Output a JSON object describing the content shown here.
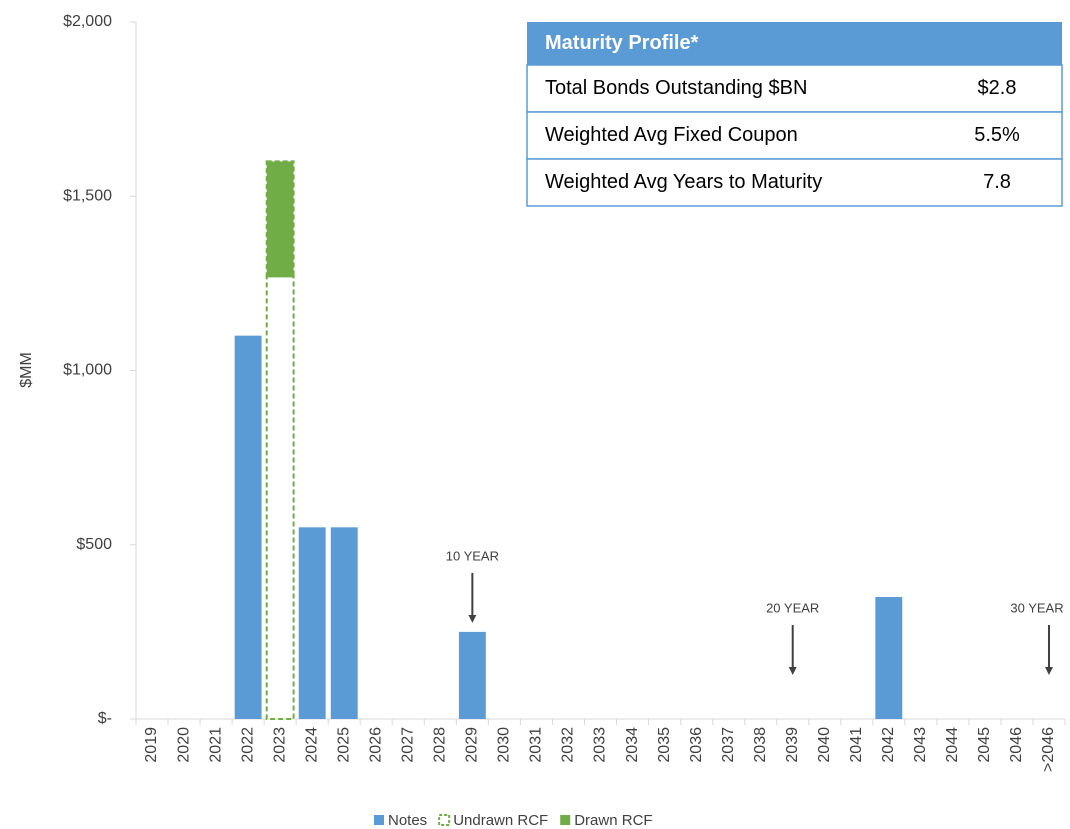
{
  "chart_data": {
    "type": "bar",
    "stacked": true,
    "y_label": "$MM",
    "categories": [
      "2019",
      "2020",
      "2021",
      "2022",
      "2023",
      "2024",
      "2025",
      "2026",
      "2027",
      "2028",
      "2029",
      "2030",
      "2031",
      "2032",
      "2033",
      "2034",
      "2035",
      "2036",
      "2037",
      "2038",
      "2039",
      "2040",
      "2041",
      "2042",
      "2043",
      "2044",
      "2045",
      "2046",
      ">2046"
    ],
    "series": [
      {
        "name": "Notes",
        "color": "#5b9bd5",
        "style": "solid",
        "values": [
          null,
          null,
          null,
          1100,
          null,
          550,
          550,
          null,
          null,
          null,
          250,
          null,
          null,
          null,
          null,
          null,
          null,
          null,
          null,
          null,
          null,
          null,
          null,
          350,
          null,
          null,
          null,
          null,
          null
        ]
      },
      {
        "name": "Undrawn RCF",
        "color": "#70ad47",
        "style": "dashed-outline",
        "values": [
          null,
          null,
          null,
          null,
          1270,
          null,
          null,
          null,
          null,
          null,
          null,
          null,
          null,
          null,
          null,
          null,
          null,
          null,
          null,
          null,
          null,
          null,
          null,
          null,
          null,
          null,
          null,
          null,
          null
        ]
      },
      {
        "name": "Drawn RCF",
        "color": "#70ad47",
        "style": "solid",
        "values": [
          null,
          null,
          null,
          null,
          330,
          null,
          null,
          null,
          null,
          null,
          null,
          null,
          null,
          null,
          null,
          null,
          null,
          null,
          null,
          null,
          null,
          null,
          null,
          null,
          null,
          null,
          null,
          null,
          null
        ]
      }
    ],
    "ylim": [
      0,
      2000
    ],
    "yticks": [
      {
        "value": 0,
        "label": "$-"
      },
      {
        "value": 500,
        "label": "$500"
      },
      {
        "value": 1000,
        "label": "$1,000"
      },
      {
        "value": 1500,
        "label": "$1,500"
      },
      {
        "value": 2000,
        "label": "$2,000"
      }
    ],
    "grid": false,
    "legend": "bottom",
    "annotations": [
      {
        "text": "10 YEAR",
        "x": "2029"
      },
      {
        "text": "20 YEAR",
        "x": "2039"
      },
      {
        "text": "30 YEAR",
        "x": ">2046"
      }
    ],
    "table": {
      "title": "Maturity Profile*",
      "rows": [
        [
          "Total Bonds Outstanding $BN",
          "$2.8"
        ],
        [
          "Weighted Avg Fixed Coupon",
          "5.5%"
        ],
        [
          "Weighted Avg Years to Maturity",
          "7.8"
        ]
      ]
    }
  }
}
